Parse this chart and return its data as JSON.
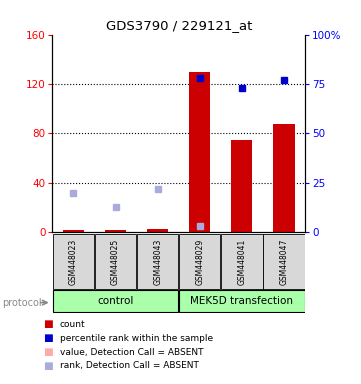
{
  "title": "GDS3790 / 229121_at",
  "samples": [
    "GSM448023",
    "GSM448025",
    "GSM448043",
    "GSM448029",
    "GSM448041",
    "GSM448047"
  ],
  "count_values": [
    2,
    2,
    3,
    130,
    75,
    88
  ],
  "count_absent": [
    true,
    true,
    true,
    false,
    false,
    false
  ],
  "percentile_values": [
    null,
    null,
    null,
    78,
    73,
    77
  ],
  "rank_absent_values": [
    20,
    13,
    22,
    3,
    null,
    null
  ],
  "left_ylim": [
    0,
    160
  ],
  "right_ylim": [
    0,
    100
  ],
  "left_yticks": [
    0,
    40,
    80,
    120,
    160
  ],
  "right_yticks": [
    0,
    25,
    50,
    75,
    100
  ],
  "right_yticklabels": [
    "0",
    "25",
    "50",
    "75",
    "100%"
  ],
  "bar_color": "#cc0000",
  "blue_dot_color": "#0000cc",
  "rank_absent_color": "#aaaadd",
  "count_absent_color": "#ffaaaa",
  "group_labels": [
    "control",
    "MEK5D transfection"
  ],
  "group_color": "#aaffaa",
  "protocol_label": "protocol",
  "legend_items": [
    {
      "color": "#cc0000",
      "label": "count"
    },
    {
      "color": "#0000cc",
      "label": "percentile rank within the sample"
    },
    {
      "color": "#ffaaaa",
      "label": "value, Detection Call = ABSENT"
    },
    {
      "color": "#aaaadd",
      "label": "rank, Detection Call = ABSENT"
    }
  ],
  "bar_width": 0.5
}
